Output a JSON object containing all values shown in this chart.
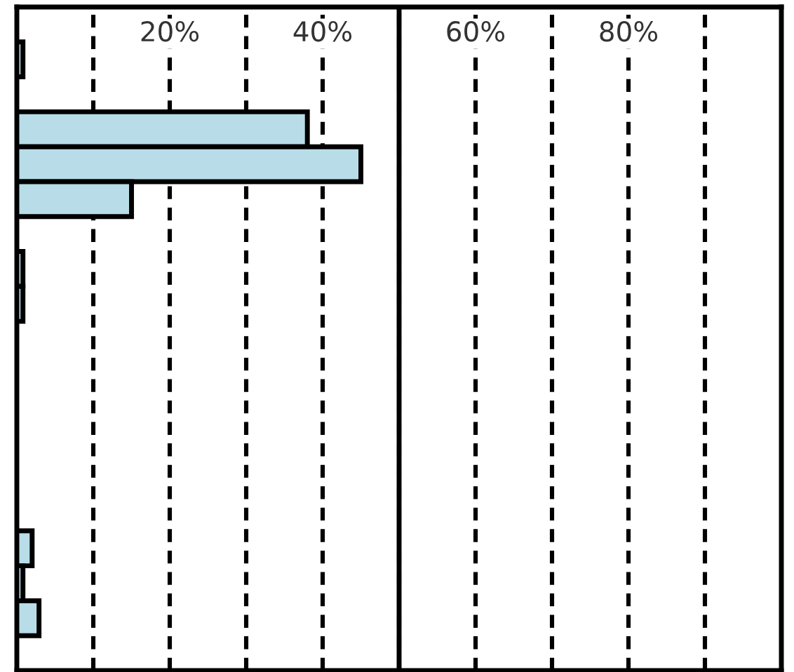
{
  "chart_data": {
    "type": "bar",
    "orientation": "horizontal",
    "categories": [
      null,
      null,
      null,
      null,
      null,
      null,
      null,
      null,
      null,
      null,
      null,
      null,
      null,
      null,
      null,
      null,
      null,
      null,
      null
    ],
    "values": [
      null,
      0.8,
      null,
      38,
      45,
      15,
      null,
      0.8,
      0.8,
      null,
      null,
      null,
      null,
      null,
      null,
      2,
      0.8,
      2.9,
      null
    ],
    "color": "#b8dde8",
    "xlim": [
      0,
      100
    ],
    "xticks": [
      {
        "value": 10,
        "label": null
      },
      {
        "value": 20,
        "label": "20%"
      },
      {
        "value": 30,
        "label": null
      },
      {
        "value": 40,
        "label": "40%"
      },
      {
        "value": 50,
        "label": null
      },
      {
        "value": 60,
        "label": "60%"
      },
      {
        "value": 70,
        "label": null
      },
      {
        "value": 80,
        "label": "80%"
      },
      {
        "value": 90,
        "label": null
      }
    ],
    "ref_lines": [
      {
        "axis": "x",
        "value": 50,
        "color": "#000000",
        "line_style": "solid"
      }
    ],
    "grid": "x"
  }
}
